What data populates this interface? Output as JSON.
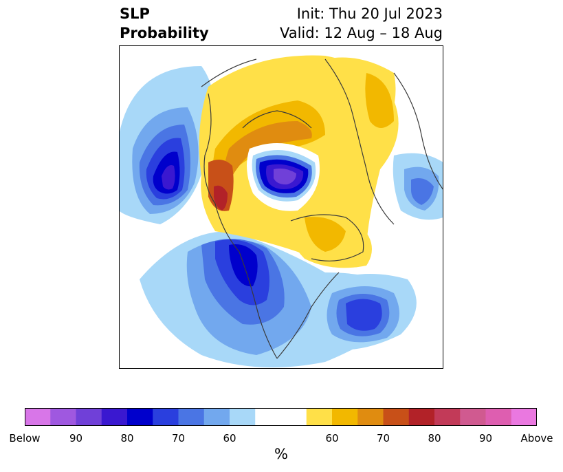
{
  "title": {
    "left_line1": "SLP",
    "left_line2": "Probability",
    "right_line1": "Init: Thu 20 Jul 2023",
    "right_line2": "Valid: 12 Aug – 18 Aug"
  },
  "colorbar": {
    "colors": [
      "#d876e8",
      "#9f58e0",
      "#7040d8",
      "#3a18d0",
      "#0000cc",
      "#2a3fde",
      "#4a75e4",
      "#72a8ee",
      "#a8d8f8",
      "#ffffff",
      "#ffffff",
      "#ffe048",
      "#f2b800",
      "#e08c10",
      "#c85018",
      "#b22228",
      "#c23a58",
      "#d05a90",
      "#de5eb0",
      "#ea78e0"
    ],
    "tick_labels": [
      "Below",
      "90",
      "80",
      "70",
      "60",
      "60",
      "70",
      "80",
      "90",
      "Above"
    ],
    "unit_label": "%"
  }
}
